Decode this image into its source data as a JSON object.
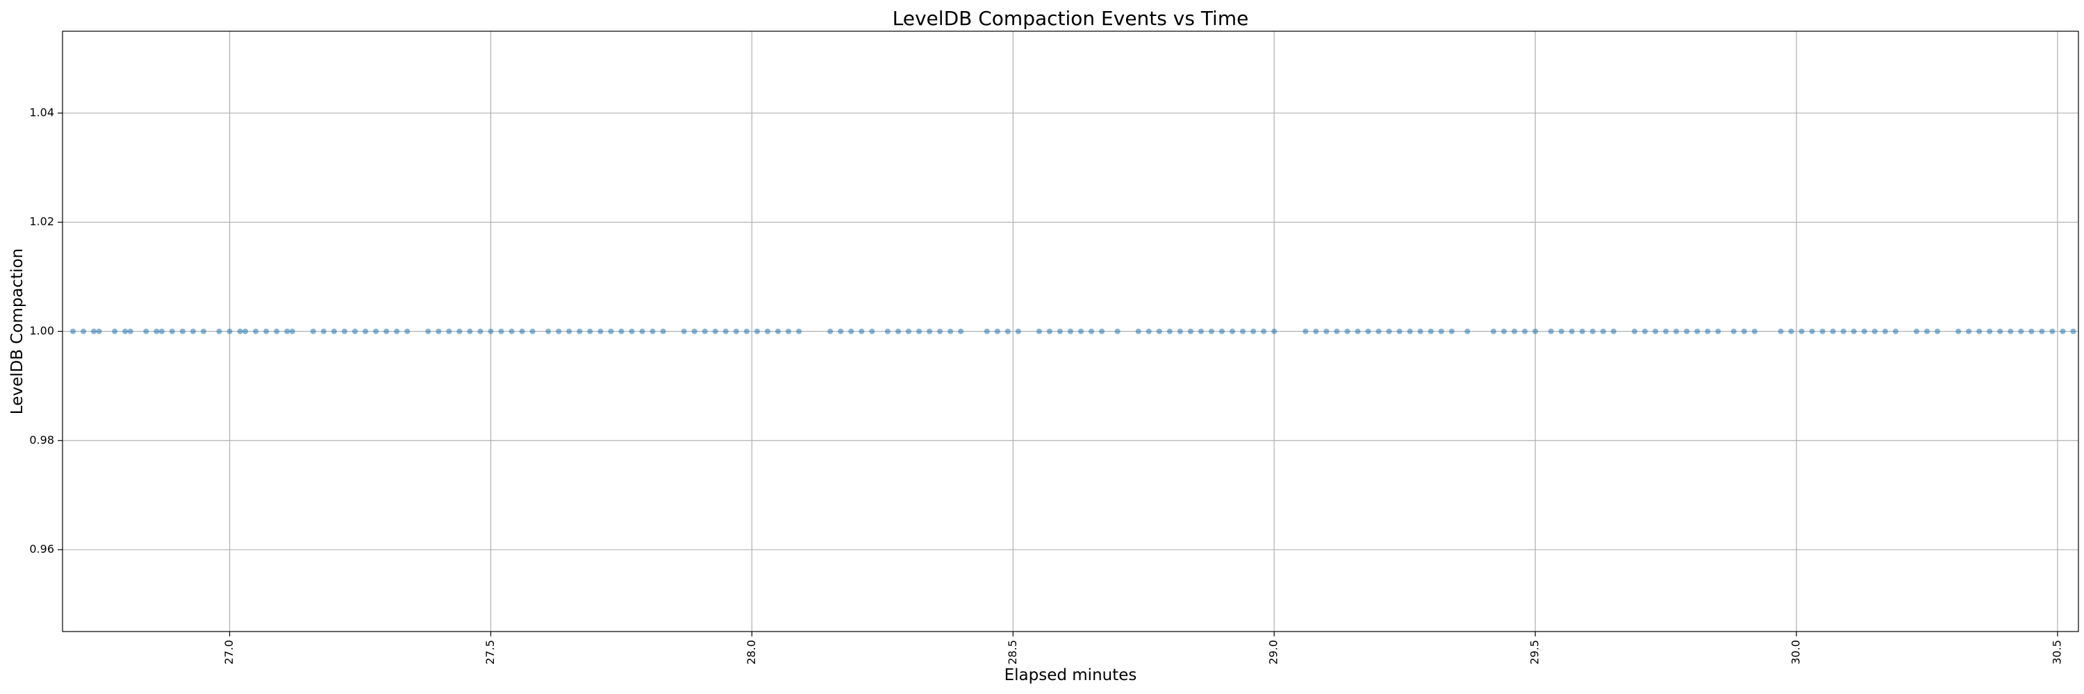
{
  "chart_data": {
    "type": "scatter",
    "title": "LevelDB Compaction Events vs Time",
    "xlabel": "Elapsed minutes",
    "ylabel": "LevelDB Compaction",
    "xlim": [
      26.68,
      30.54
    ],
    "ylim": [
      0.945,
      1.055
    ],
    "xticks": [
      27.0,
      27.5,
      28.0,
      28.5,
      29.0,
      29.5,
      30.0,
      30.5
    ],
    "xtick_labels": [
      "27.0",
      "27.5",
      "28.0",
      "28.5",
      "29.0",
      "29.5",
      "30.0",
      "30.5"
    ],
    "yticks": [
      0.96,
      0.98,
      1.0,
      1.02,
      1.04
    ],
    "ytick_labels": [
      "0.96",
      "0.98",
      "1.00",
      "1.02",
      "1.04"
    ],
    "grid": true,
    "point_color": "#1f77b4",
    "series": [
      {
        "x": [
          26.7,
          26.72,
          26.74,
          26.75,
          26.78,
          26.8,
          26.81,
          26.84,
          26.86,
          26.87,
          26.89,
          26.91,
          26.93,
          26.95,
          26.98,
          27.0,
          27.02,
          27.03,
          27.05,
          27.07,
          27.09,
          27.11,
          27.12,
          27.16,
          27.18,
          27.2,
          27.22,
          27.24,
          27.26,
          27.28,
          27.3,
          27.32,
          27.34,
          27.38,
          27.4,
          27.42,
          27.44,
          27.46,
          27.48,
          27.5,
          27.52,
          27.54,
          27.56,
          27.58,
          27.61,
          27.63,
          27.65,
          27.67,
          27.69,
          27.71,
          27.73,
          27.75,
          27.77,
          27.79,
          27.81,
          27.83,
          27.87,
          27.89,
          27.91,
          27.93,
          27.95,
          27.97,
          27.99,
          28.01,
          28.03,
          28.05,
          28.07,
          28.09,
          28.15,
          28.17,
          28.19,
          28.21,
          28.23,
          28.26,
          28.28,
          28.3,
          28.32,
          28.34,
          28.36,
          28.38,
          28.4,
          28.45,
          28.47,
          28.49,
          28.51,
          28.55,
          28.57,
          28.59,
          28.61,
          28.63,
          28.65,
          28.67,
          28.7,
          28.74,
          28.76,
          28.78,
          28.8,
          28.82,
          28.84,
          28.86,
          28.88,
          28.9,
          28.92,
          28.94,
          28.96,
          28.98,
          29.0,
          29.06,
          29.08,
          29.1,
          29.12,
          29.14,
          29.16,
          29.18,
          29.2,
          29.22,
          29.24,
          29.26,
          29.28,
          29.3,
          29.32,
          29.34,
          29.37,
          29.42,
          29.44,
          29.46,
          29.48,
          29.5,
          29.53,
          29.55,
          29.57,
          29.59,
          29.61,
          29.63,
          29.65,
          29.69,
          29.71,
          29.73,
          29.75,
          29.77,
          29.79,
          29.81,
          29.83,
          29.85,
          29.88,
          29.9,
          29.92,
          29.97,
          29.99,
          30.01,
          30.03,
          30.05,
          30.07,
          30.09,
          30.11,
          30.13,
          30.15,
          30.17,
          30.19,
          30.23,
          30.25,
          30.27,
          30.31,
          30.33,
          30.35,
          30.37,
          30.39,
          30.41,
          30.43,
          30.45,
          30.47,
          30.49,
          30.51,
          30.53
        ],
        "y": [
          1,
          1,
          1,
          1,
          1,
          1,
          1,
          1,
          1,
          1,
          1,
          1,
          1,
          1,
          1,
          1,
          1,
          1,
          1,
          1,
          1,
          1,
          1,
          1,
          1,
          1,
          1,
          1,
          1,
          1,
          1,
          1,
          1,
          1,
          1,
          1,
          1,
          1,
          1,
          1,
          1,
          1,
          1,
          1,
          1,
          1,
          1,
          1,
          1,
          1,
          1,
          1,
          1,
          1,
          1,
          1,
          1,
          1,
          1,
          1,
          1,
          1,
          1,
          1,
          1,
          1,
          1,
          1,
          1,
          1,
          1,
          1,
          1,
          1,
          1,
          1,
          1,
          1,
          1,
          1,
          1,
          1,
          1,
          1,
          1,
          1,
          1,
          1,
          1,
          1,
          1,
          1,
          1,
          1,
          1,
          1,
          1,
          1,
          1,
          1,
          1,
          1,
          1,
          1,
          1,
          1,
          1,
          1,
          1,
          1,
          1,
          1,
          1,
          1,
          1,
          1,
          1,
          1,
          1,
          1,
          1,
          1,
          1,
          1,
          1,
          1,
          1,
          1,
          1,
          1,
          1,
          1,
          1,
          1,
          1,
          1,
          1,
          1,
          1,
          1,
          1,
          1,
          1,
          1,
          1,
          1,
          1,
          1,
          1,
          1,
          1,
          1,
          1,
          1,
          1,
          1,
          1,
          1,
          1,
          1,
          1,
          1,
          1,
          1,
          1,
          1,
          1,
          1,
          1,
          1,
          1,
          1,
          1,
          1
        ]
      }
    ]
  }
}
